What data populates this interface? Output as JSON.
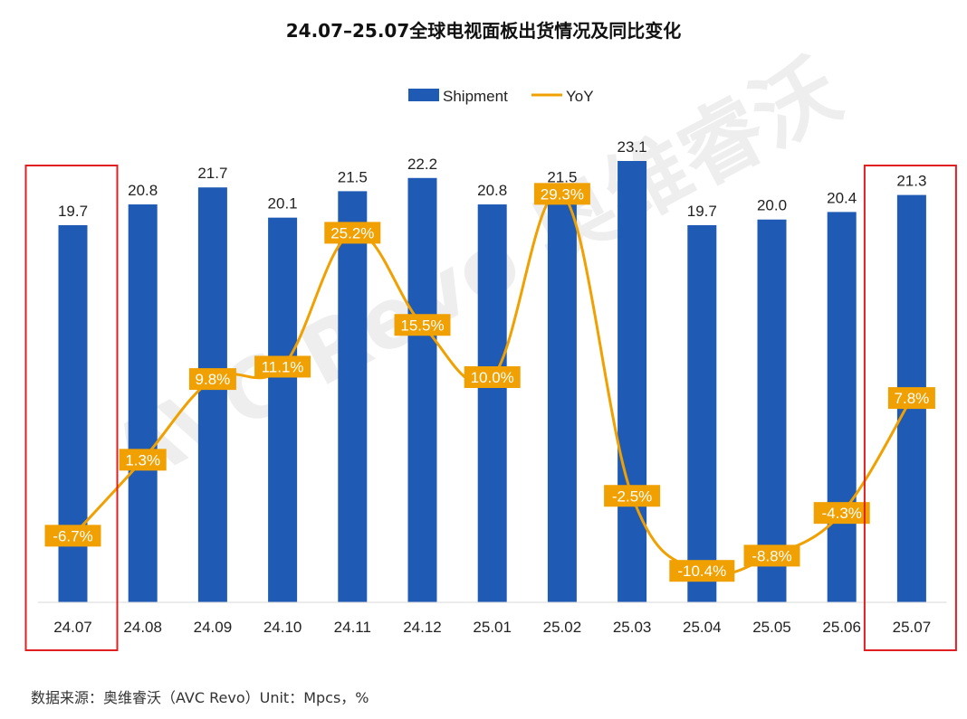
{
  "chart_data": {
    "type": "bar",
    "title": "24.07–25.07全球电视面板出货情况及同比变化",
    "categories": [
      "24.07",
      "24.08",
      "24.09",
      "24.10",
      "24.11",
      "24.12",
      "25.01",
      "25.02",
      "25.03",
      "25.04",
      "25.05",
      "25.06",
      "25.07"
    ],
    "series": [
      {
        "name": "Shipment",
        "type": "bar",
        "color": "#1f5bb5",
        "values": [
          19.7,
          20.8,
          21.7,
          20.1,
          21.5,
          22.2,
          20.8,
          21.5,
          23.1,
          19.7,
          20.0,
          20.4,
          21.3
        ]
      },
      {
        "name": "YoY",
        "type": "line",
        "color": "#f0a000",
        "values": [
          -6.7,
          1.3,
          9.8,
          11.1,
          25.2,
          15.5,
          10.0,
          29.3,
          -2.5,
          -10.4,
          -8.8,
          -4.3,
          7.8
        ],
        "labels": [
          "-6.7%",
          "1.3%",
          "9.8%",
          "11.1%",
          "25.2%",
          "15.5%",
          "10.0%",
          "29.3%",
          "-2.5%",
          "-10.4%",
          "-8.8%",
          "-4.3%",
          "7.8%"
        ]
      }
    ],
    "bar_value_labels": [
      "19.7",
      "20.8",
      "21.7",
      "20.1",
      "21.5",
      "22.2",
      "20.8",
      "21.5",
      "23.1",
      "19.7",
      "20.0",
      "20.4",
      "21.3"
    ],
    "legend": {
      "position": "top-center"
    },
    "highlighted_categories": [
      "24.07",
      "25.07"
    ],
    "highlight_color": "#e02020",
    "grid": false
  },
  "watermark": "AVC Revo 奥维睿沃",
  "source_note": "数据来源：奥维睿沃（AVC Revo）Unit：Mpcs，%"
}
